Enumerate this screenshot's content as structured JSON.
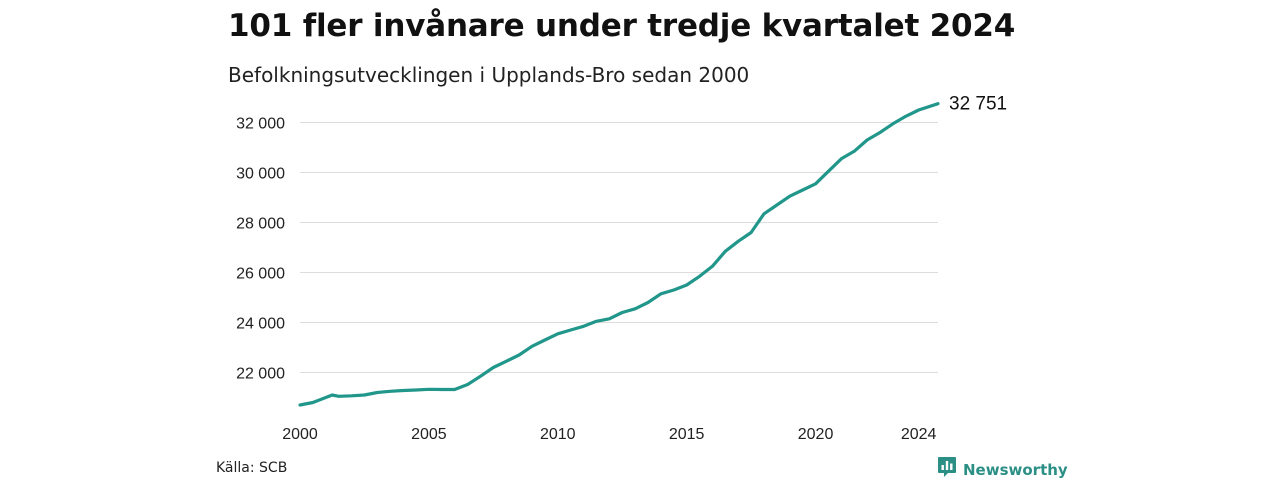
{
  "header": {
    "title": "101 fler invånare under tredje kvartalet 2024",
    "subtitle": "Befolkningsutvecklingen i Upplands-Bro sedan 2000"
  },
  "footer": {
    "source": "Källa: SCB",
    "brand": "Newsworthy",
    "brand_icon": "bar-chart-icon"
  },
  "colors": {
    "line": "#21968a",
    "grid": "#dddddd",
    "brand": "#2b8f86"
  },
  "chart_data": {
    "type": "line",
    "title": "101 fler invånare under tredje kvartalet 2024",
    "subtitle": "Befolkningsutvecklingen i Upplands-Bro sedan 2000",
    "xlabel": "",
    "ylabel": "",
    "xlim": [
      2000,
      2024.75
    ],
    "ylim": [
      20500,
      32900
    ],
    "grid": true,
    "legend": "none",
    "x_ticks": [
      2000,
      2005,
      2010,
      2015,
      2020,
      2024
    ],
    "x_tick_labels": [
      "2000",
      "2005",
      "2010",
      "2015",
      "2020",
      "2024"
    ],
    "y_ticks": [
      22000,
      24000,
      26000,
      28000,
      30000,
      32000
    ],
    "y_tick_labels": [
      "22 000",
      "24 000",
      "26 000",
      "28 000",
      "30 000",
      "32 000"
    ],
    "end_label": "32 751",
    "series": [
      {
        "x": [
          2000,
          2000.5,
          2001,
          2001.25,
          2001.5,
          2002,
          2002.5,
          2003,
          2003.5,
          2004,
          2004.5,
          2005,
          2005.5,
          2006,
          2006.5,
          2007,
          2007.5,
          2008,
          2008.5,
          2009,
          2009.5,
          2010,
          2010.5,
          2011,
          2011.5,
          2012,
          2012.5,
          2013,
          2013.5,
          2014,
          2014.5,
          2015,
          2015.5,
          2016,
          2016.5,
          2017,
          2017.5,
          2018,
          2018.5,
          2019,
          2019.5,
          2020,
          2020.5,
          2021,
          2021.5,
          2022,
          2022.5,
          2023,
          2023.5,
          2024,
          2024.75
        ],
        "y": [
          20700,
          20800,
          21000,
          21100,
          21050,
          21070,
          21100,
          21200,
          21250,
          21280,
          21300,
          21330,
          21320,
          21320,
          21520,
          21850,
          22200,
          22450,
          22700,
          23050,
          23300,
          23550,
          23700,
          23850,
          24050,
          24150,
          24400,
          24550,
          24800,
          25150,
          25300,
          25500,
          25850,
          26250,
          26850,
          27250,
          27600,
          28350,
          28700,
          29050,
          29300,
          29550,
          30050,
          30550,
          30850,
          31300,
          31600,
          31950,
          32250,
          32500,
          32751
        ]
      }
    ]
  }
}
